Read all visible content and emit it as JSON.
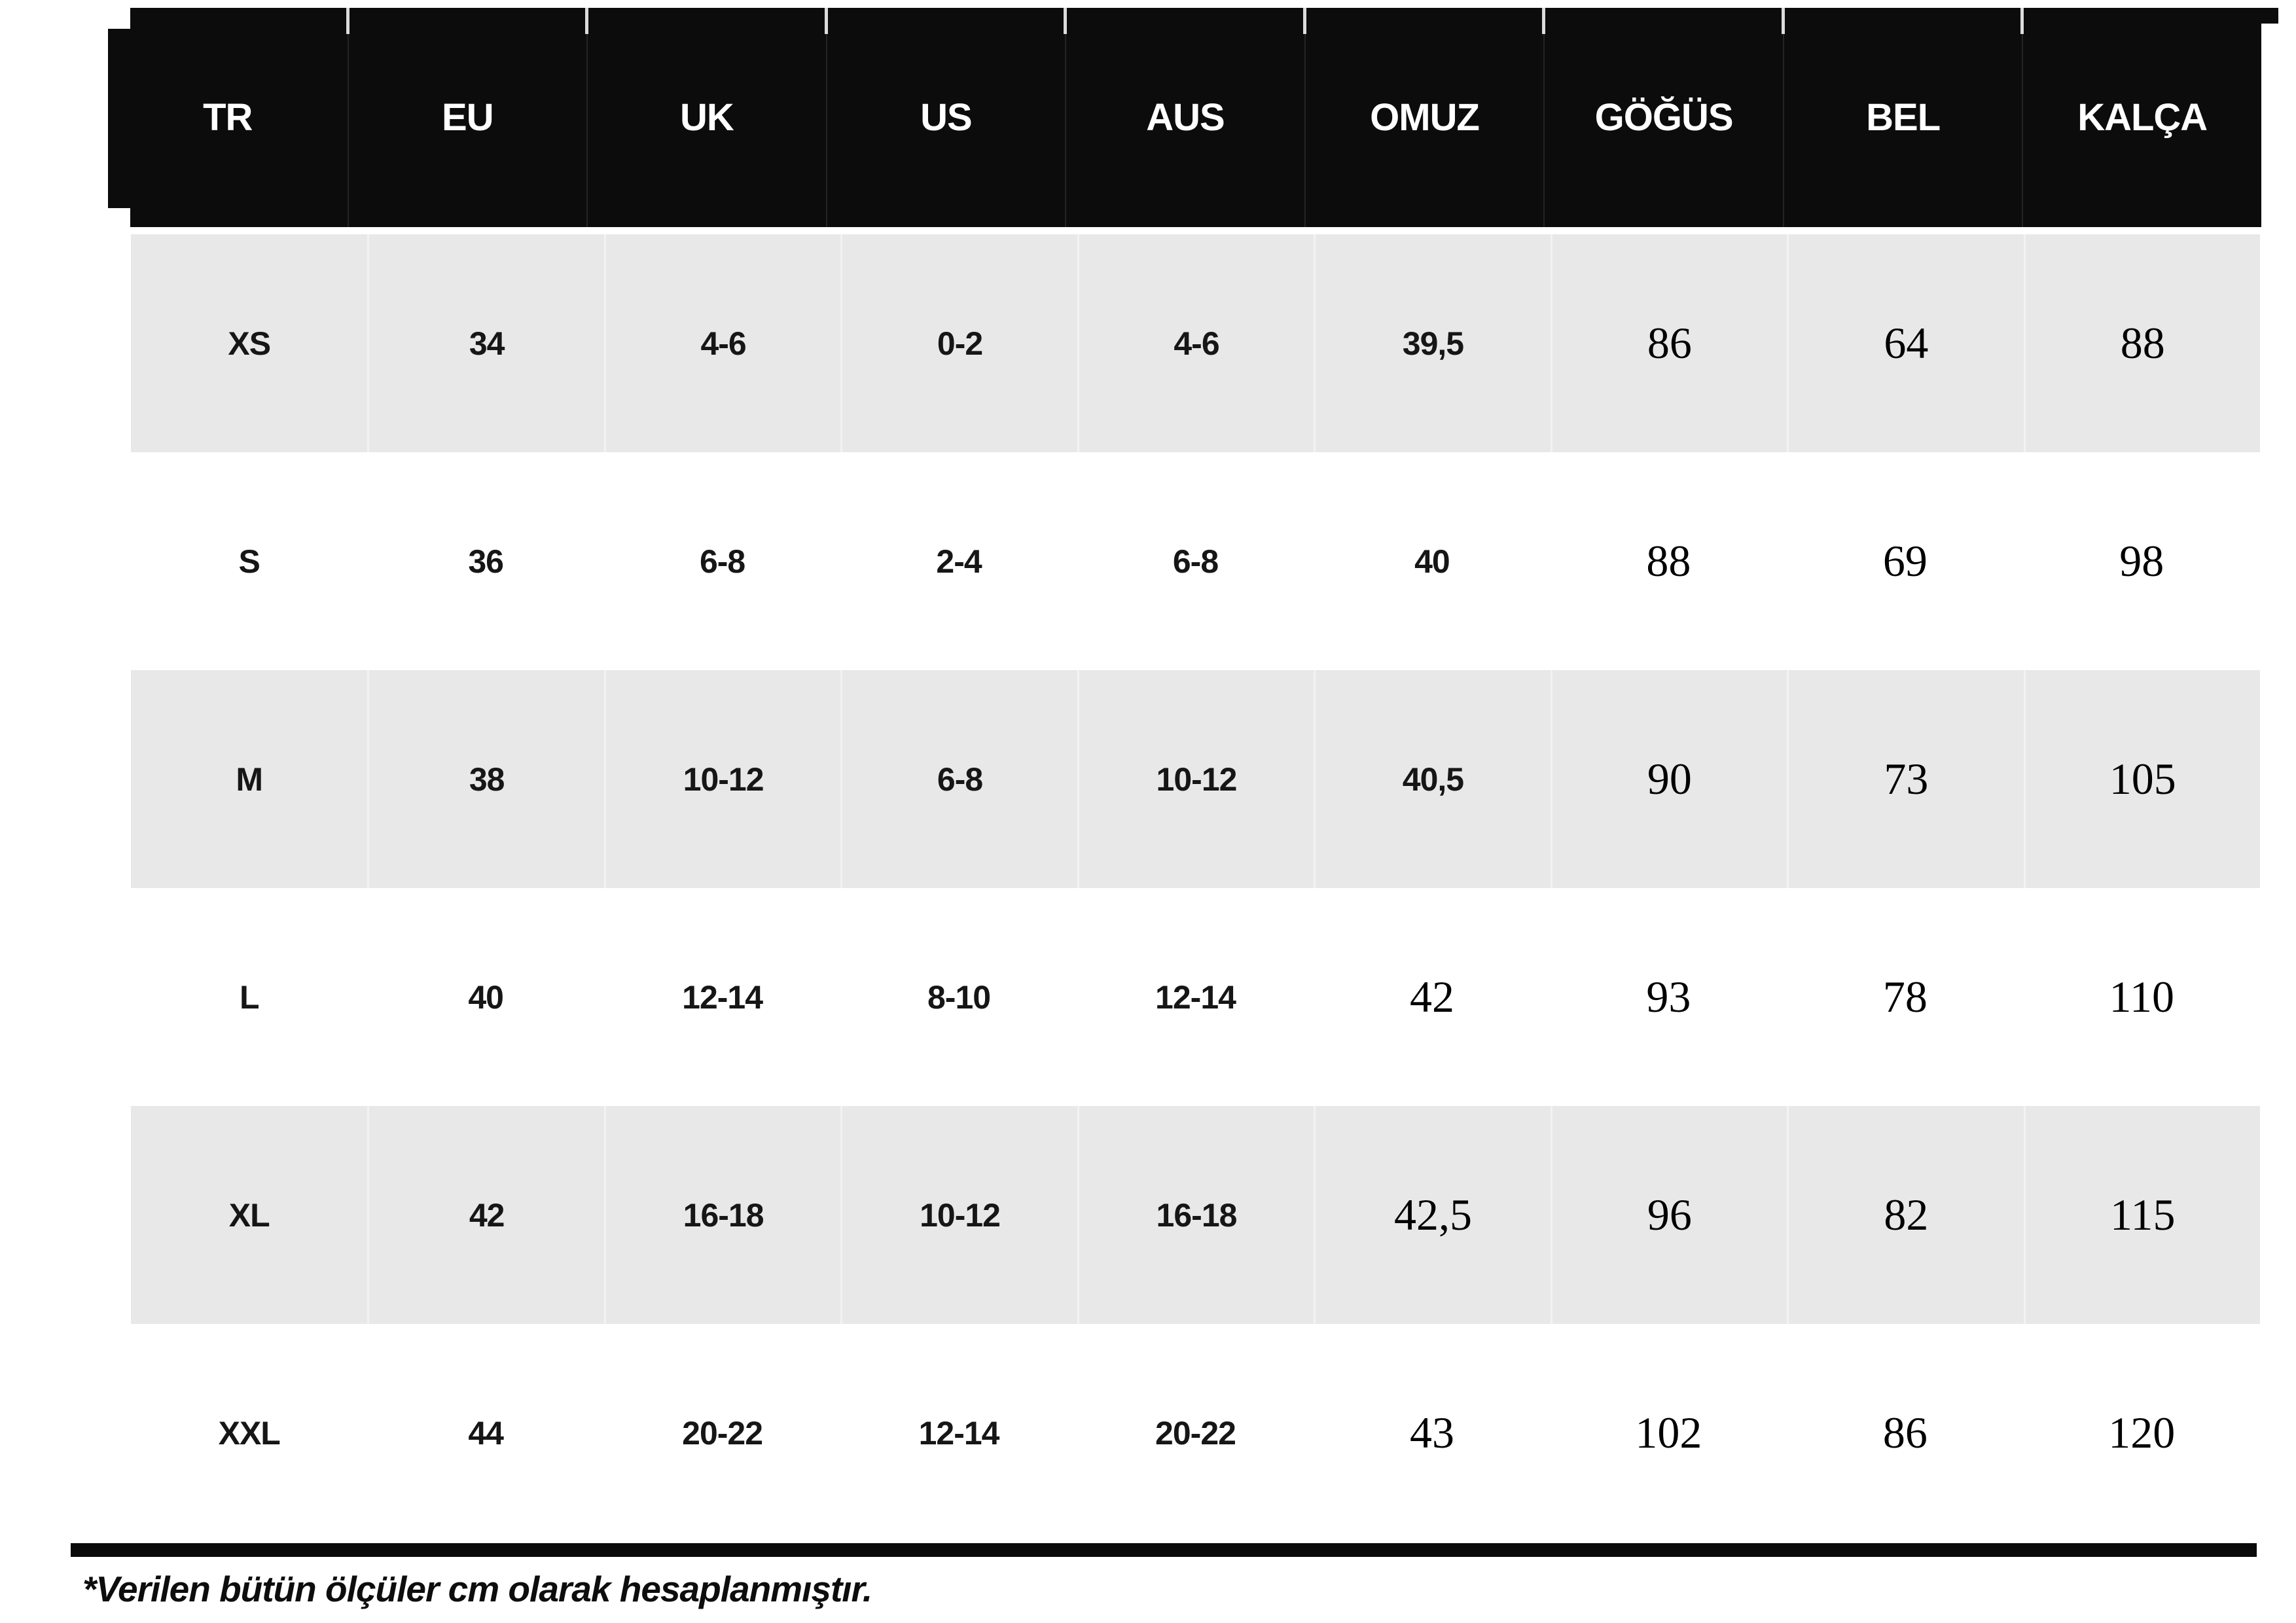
{
  "table": {
    "columns": [
      "TR",
      "EU",
      "UK",
      "US",
      "AUS",
      "OMUZ",
      "GÖĞÜS",
      "BEL",
      "KALÇA"
    ],
    "rows": [
      [
        "XS",
        "34",
        "4-6",
        "0-2",
        "4-6",
        "39,5",
        "86",
        "64",
        "88"
      ],
      [
        "S",
        "36",
        "6-8",
        "2-4",
        "6-8",
        "40",
        "88",
        "69",
        "98"
      ],
      [
        "M",
        "38",
        "10-12",
        "6-8",
        "10-12",
        "40,5",
        "90",
        "73",
        "105"
      ],
      [
        "L",
        "40",
        "12-14",
        "8-10",
        "12-14",
        "42",
        "93",
        "78",
        "110"
      ],
      [
        "XL",
        "42",
        "16-18",
        "10-12",
        "16-18",
        "42,5",
        "96",
        "82",
        "115"
      ],
      [
        "XXL",
        "44",
        "20-22",
        "12-14",
        "20-22",
        "43",
        "102",
        "86",
        "120"
      ]
    ]
  },
  "footnote": "*Verilen bütün ölçüler cm olarak hesaplanmıştır.",
  "colors": {
    "header_bg": "#0c0c0c",
    "row_alt_bg": "#e8e8e8",
    "row_bg": "#ffffff",
    "text": "#161616",
    "serif_text": "#000000"
  }
}
